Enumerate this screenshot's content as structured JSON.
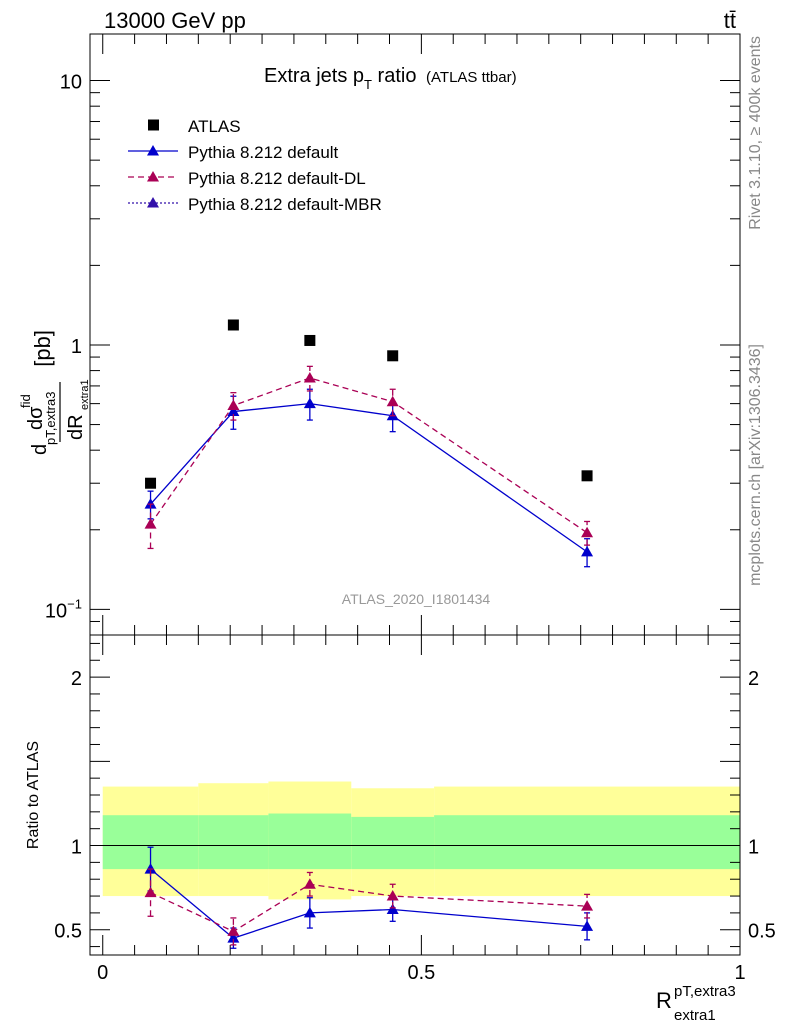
{
  "header": {
    "energy_label": "13000 GeV pp",
    "process_label": "tt̄"
  },
  "side_labels": {
    "rivet": "Rivet 3.1.10, ≥ 400k events",
    "mcplots": "mcplots.cern.ch [arXiv:1306.3436]"
  },
  "chart_data": [
    {
      "type": "scatter",
      "panel": "main",
      "title_main": "Extra jets p",
      "title_sub": "T",
      "title_tail": " ratio",
      "title_small": "(ATLAS ttbar)",
      "ylabel_d1": "d",
      "ylabel_sigma": "dσ",
      "ylabel_fid": "fid",
      "ylabel_sub": "pT,extra3",
      "ylabel_dR": "dR",
      "ylabel_dR_sub": "extra1",
      "ylabel_units": "[pb]",
      "yscale": "log",
      "ylim": [
        0.08,
        15
      ],
      "xlim": [
        -0.02,
        1.0
      ],
      "yticks": [
        {
          "value": 0.1,
          "base": "10",
          "exp": "−1"
        },
        {
          "value": 1,
          "label": "1"
        },
        {
          "value": 10,
          "label": "10"
        }
      ],
      "analysis_label": "ATLAS_2020_I1801434",
      "legend_position": "top-left",
      "x": [
        0.075,
        0.205,
        0.325,
        0.455,
        0.76
      ],
      "series": [
        {
          "name": "ATLAS",
          "marker": "square",
          "color": "#000000",
          "values": [
            0.3,
            1.19,
            1.04,
            0.91,
            0.32
          ],
          "err_low": [
            0,
            0,
            0,
            0,
            0
          ],
          "err_high": [
            0,
            0,
            0,
            0,
            0
          ]
        },
        {
          "name": "Pythia 8.212 default",
          "marker": "triangle",
          "color": "#0000cc",
          "dash": "",
          "values": [
            0.25,
            0.56,
            0.6,
            0.54,
            0.165
          ],
          "err_low": [
            0.03,
            0.08,
            0.08,
            0.07,
            0.02
          ],
          "err_high": [
            0.03,
            0.08,
            0.08,
            0.07,
            0.02
          ]
        },
        {
          "name": "Pythia 8.212 default-DL",
          "marker": "triangle",
          "color": "#aa0055",
          "dash": "6,4",
          "values": [
            0.21,
            0.59,
            0.75,
            0.61,
            0.195
          ],
          "err_low": [
            0.04,
            0.07,
            0.08,
            0.07,
            0.02
          ],
          "err_high": [
            0.04,
            0.07,
            0.08,
            0.07,
            0.02
          ]
        },
        {
          "name": "Pythia 8.212 default-MBR",
          "marker": "triangle",
          "color": "#3311aa",
          "dash": "2,2",
          "values": [],
          "err_low": [],
          "err_high": []
        }
      ]
    },
    {
      "type": "scatter",
      "panel": "ratio",
      "ylabel": "Ratio to ATLAS",
      "xlabel_main": "R",
      "xlabel_sup": "pT,extra3",
      "xlabel_sub": "extra1",
      "ylim": [
        0.35,
        2.25
      ],
      "xlim": [
        -0.02,
        1.0
      ],
      "yticks": [
        0.5,
        1,
        2
      ],
      "xticks": [
        {
          "value": 0,
          "label": "0"
        },
        {
          "value": 0.5,
          "label": "0.5"
        },
        {
          "value": 1,
          "label": "1"
        }
      ],
      "bands": {
        "edges": [
          0,
          0.15,
          0.26,
          0.39,
          0.52,
          1.0
        ],
        "green_low": [
          0.86,
          0.86,
          0.86,
          0.86,
          0.86
        ],
        "green_high": [
          1.18,
          1.18,
          1.19,
          1.17,
          1.18
        ],
        "yellow_low": [
          0.7,
          0.7,
          0.68,
          0.7,
          0.7
        ],
        "yellow_high": [
          1.35,
          1.37,
          1.38,
          1.34,
          1.35
        ]
      },
      "x": [
        0.075,
        0.205,
        0.325,
        0.455,
        0.76
      ],
      "series": [
        {
          "name": "Pythia 8.212 default",
          "color": "#0000cc",
          "dash": "",
          "values": [
            0.86,
            0.45,
            0.6,
            0.62,
            0.52
          ],
          "err_low": [
            0.13,
            0.06,
            0.09,
            0.07,
            0.08
          ],
          "err_high": [
            0.13,
            0.06,
            0.09,
            0.07,
            0.08
          ]
        },
        {
          "name": "Pythia 8.212 default-DL",
          "color": "#aa0055",
          "dash": "6,4",
          "values": [
            0.72,
            0.49,
            0.77,
            0.7,
            0.64
          ],
          "err_low": [
            0.14,
            0.08,
            0.07,
            0.07,
            0.07
          ],
          "err_high": [
            0.14,
            0.08,
            0.07,
            0.07,
            0.07
          ]
        }
      ]
    }
  ]
}
